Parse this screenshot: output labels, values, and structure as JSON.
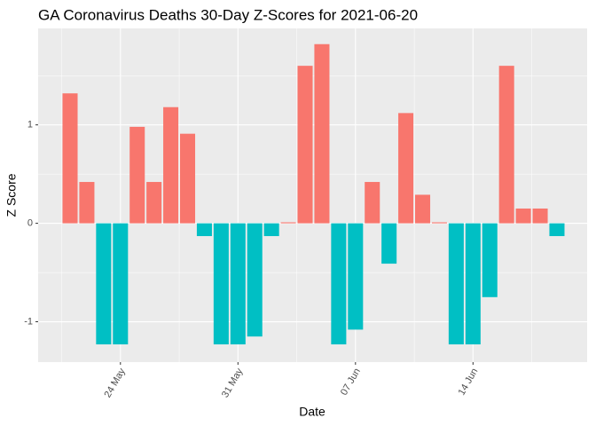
{
  "chart_data": {
    "type": "bar",
    "title": "GA Coronavirus Deaths 30-Day Z-Scores for 2021-06-20",
    "x_label": "Date",
    "y_label": "Z Score",
    "categories": [
      "21 May",
      "22 May",
      "23 May",
      "24 May",
      "25 May",
      "26 May",
      "27 May",
      "28 May",
      "29 May",
      "30 May",
      "31 May",
      "01 Jun",
      "02 Jun",
      "03 Jun",
      "04 Jun",
      "05 Jun",
      "06 Jun",
      "07 Jun",
      "08 Jun",
      "09 Jun",
      "10 Jun",
      "11 Jun",
      "12 Jun",
      "13 Jun",
      "14 Jun",
      "15 Jun",
      "16 Jun",
      "17 Jun",
      "18 Jun",
      "19 Jun"
    ],
    "values": [
      1.32,
      0.42,
      -1.23,
      -1.23,
      0.98,
      0.42,
      1.18,
      0.91,
      -0.13,
      -1.23,
      -1.23,
      -1.15,
      -0.13,
      0.01,
      1.6,
      1.82,
      -1.23,
      -1.08,
      0.42,
      -0.41,
      1.12,
      0.29,
      0.01,
      -1.23,
      -1.23,
      -0.75,
      1.6,
      0.15,
      0.15,
      -0.13
    ],
    "pos_color": "#F8766D",
    "neg_color": "#00BFC4",
    "xticks": [
      "24 May",
      "31 May",
      "07 Jun",
      "14 Jun"
    ],
    "ylim": [
      -1.41,
      1.98
    ],
    "yticks": [
      -1,
      0,
      1
    ],
    "grid": true
  }
}
